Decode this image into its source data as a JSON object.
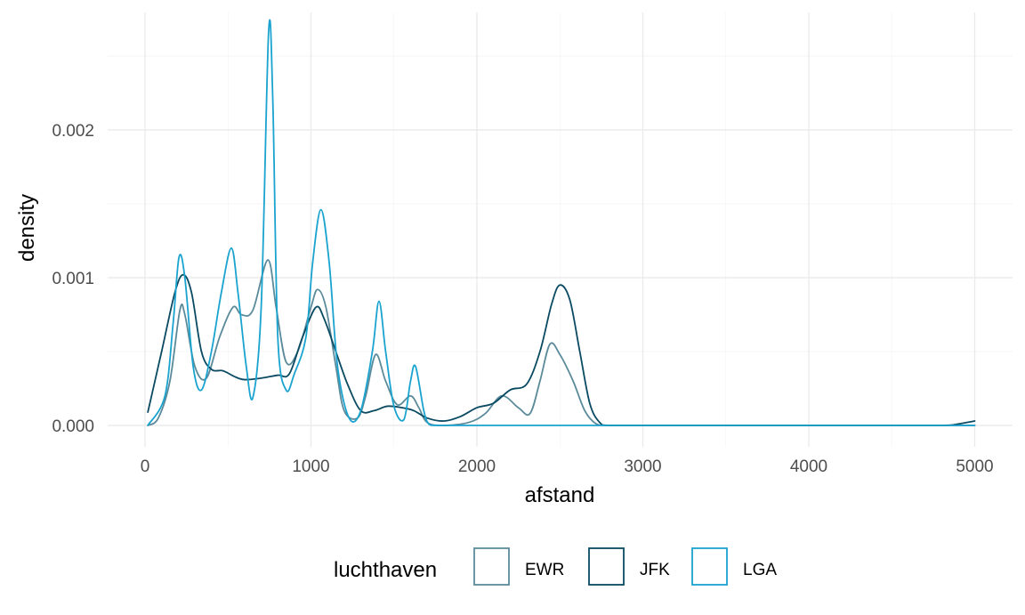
{
  "chart_data": {
    "type": "line",
    "title": "",
    "xlabel": "afstand",
    "ylabel": "density",
    "xlim": [
      0,
      5000
    ],
    "ylim": [
      0,
      0.0027
    ],
    "grid": true,
    "x_ticks": [
      {
        "value": 0,
        "label": "0"
      },
      {
        "value": 1000,
        "label": "1000"
      },
      {
        "value": 2000,
        "label": "2000"
      },
      {
        "value": 3000,
        "label": "3000"
      },
      {
        "value": 4000,
        "label": "4000"
      },
      {
        "value": 5000,
        "label": "5000"
      }
    ],
    "y_ticks": [
      {
        "value": 0,
        "label": "0.000"
      },
      {
        "value": 0.001,
        "label": "0.001"
      },
      {
        "value": 0.002,
        "label": "0.002"
      }
    ],
    "legend": {
      "title": "luchthaven",
      "placement": "bottom"
    },
    "series": [
      {
        "name": "EWR",
        "color": "#5b8a9a",
        "points": [
          [
            17,
            0
          ],
          [
            80,
            5e-05
          ],
          [
            150,
            0.0003
          ],
          [
            210,
            0.00078
          ],
          [
            240,
            0.00075
          ],
          [
            300,
            0.0004
          ],
          [
            370,
            0.00032
          ],
          [
            450,
            0.0006
          ],
          [
            530,
            0.0008
          ],
          [
            580,
            0.00075
          ],
          [
            650,
            0.00078
          ],
          [
            740,
            0.00112
          ],
          [
            790,
            0.0008
          ],
          [
            850,
            0.00043
          ],
          [
            920,
            0.0005
          ],
          [
            1000,
            0.0008
          ],
          [
            1040,
            0.00092
          ],
          [
            1090,
            0.0008
          ],
          [
            1150,
            0.0004
          ],
          [
            1200,
            0.0001
          ],
          [
            1280,
            5e-05
          ],
          [
            1330,
            0.0002
          ],
          [
            1390,
            0.00048
          ],
          [
            1450,
            0.0003
          ],
          [
            1520,
            0.00014
          ],
          [
            1600,
            0.0002
          ],
          [
            1650,
            0.00012
          ],
          [
            1700,
            2e-05
          ],
          [
            1800,
            0
          ],
          [
            1950,
            2e-05
          ],
          [
            2050,
            8e-05
          ],
          [
            2150,
            0.0002
          ],
          [
            2250,
            0.00012
          ],
          [
            2320,
            8e-05
          ],
          [
            2380,
            0.0003
          ],
          [
            2440,
            0.00055
          ],
          [
            2500,
            0.00048
          ],
          [
            2580,
            0.0003
          ],
          [
            2650,
            0.0001
          ],
          [
            2720,
            1e-05
          ],
          [
            2800,
            0
          ],
          [
            5000,
            0
          ]
        ]
      },
      {
        "name": "JFK",
        "color": "#0a4a62",
        "points": [
          [
            17,
            9e-05
          ],
          [
            100,
            0.0005
          ],
          [
            180,
            0.0009
          ],
          [
            230,
            0.00102
          ],
          [
            280,
            0.0009
          ],
          [
            340,
            0.0005
          ],
          [
            400,
            0.00038
          ],
          [
            470,
            0.00037
          ],
          [
            540,
            0.00033
          ],
          [
            600,
            0.00031
          ],
          [
            700,
            0.00032
          ],
          [
            800,
            0.00034
          ],
          [
            870,
            0.00035
          ],
          [
            950,
            0.0006
          ],
          [
            1030,
            0.0008
          ],
          [
            1080,
            0.00072
          ],
          [
            1150,
            0.0005
          ],
          [
            1220,
            0.00028
          ],
          [
            1300,
            0.0001
          ],
          [
            1380,
            0.0001
          ],
          [
            1460,
            0.00013
          ],
          [
            1550,
            0.00012
          ],
          [
            1620,
            0.0001
          ],
          [
            1700,
            5e-05
          ],
          [
            1800,
            3e-05
          ],
          [
            1900,
            6e-05
          ],
          [
            2000,
            0.00012
          ],
          [
            2100,
            0.00015
          ],
          [
            2200,
            0.00024
          ],
          [
            2300,
            0.00028
          ],
          [
            2380,
            0.0005
          ],
          [
            2450,
            0.00082
          ],
          [
            2500,
            0.00095
          ],
          [
            2560,
            0.00085
          ],
          [
            2620,
            0.0005
          ],
          [
            2680,
            0.00015
          ],
          [
            2740,
            2e-05
          ],
          [
            2800,
            0
          ],
          [
            4800,
            0
          ],
          [
            4900,
            1e-05
          ],
          [
            5000,
            3e-05
          ]
        ]
      },
      {
        "name": "LGA",
        "color": "#1aa3cf",
        "points": [
          [
            17,
            0
          ],
          [
            120,
            0.0002
          ],
          [
            170,
            0.0007
          ],
          [
            205,
            0.00114
          ],
          [
            240,
            0.001
          ],
          [
            290,
            0.0004
          ],
          [
            340,
            0.00024
          ],
          [
            400,
            0.0005
          ],
          [
            460,
            0.0009
          ],
          [
            520,
            0.0012
          ],
          [
            560,
            0.0009
          ],
          [
            610,
            0.0004
          ],
          [
            650,
            0.00019
          ],
          [
            700,
            0.0008
          ],
          [
            745,
            0.00267
          ],
          [
            770,
            0.0022
          ],
          [
            800,
            0.0006
          ],
          [
            850,
            0.00024
          ],
          [
            900,
            0.00035
          ],
          [
            970,
            0.0006
          ],
          [
            1010,
            0.0011
          ],
          [
            1060,
            0.00146
          ],
          [
            1110,
            0.0011
          ],
          [
            1160,
            0.0004
          ],
          [
            1230,
            5e-05
          ],
          [
            1300,
            0.0001
          ],
          [
            1370,
            0.0005
          ],
          [
            1410,
            0.00084
          ],
          [
            1450,
            0.0005
          ],
          [
            1500,
            0.00013
          ],
          [
            1560,
            4e-05
          ],
          [
            1600,
            0.0003
          ],
          [
            1630,
            0.0004
          ],
          [
            1680,
            0.0001
          ],
          [
            1710,
            1e-05
          ],
          [
            1760,
            0
          ],
          [
            5000,
            0
          ]
        ]
      }
    ]
  }
}
